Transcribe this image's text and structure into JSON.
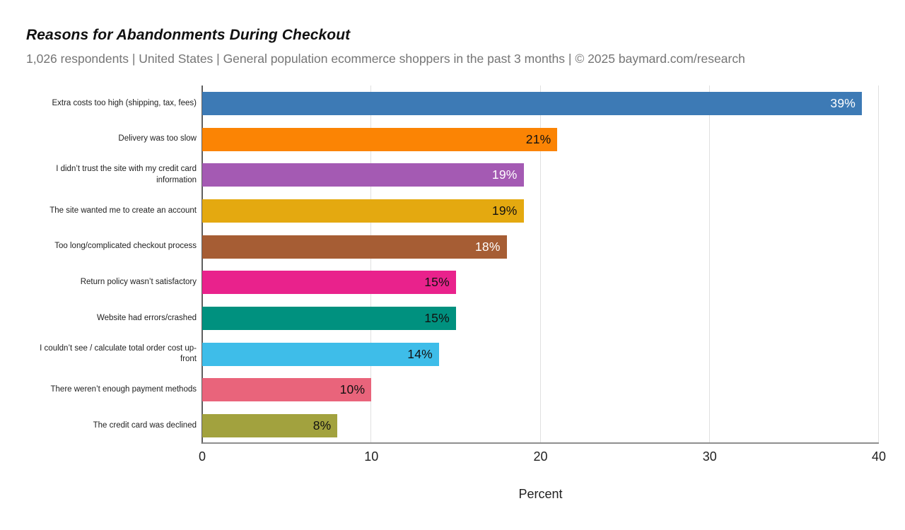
{
  "header": {
    "title": "Reasons for Abandonments During Checkout",
    "subtitle": "1,026 respondents | United States | General population ecommerce shoppers in the past 3 months | © 2025 baymard.com/research"
  },
  "chart_data": {
    "type": "bar",
    "orientation": "horizontal",
    "title": "Reasons for Abandonments During Checkout",
    "subtitle": "1,026 respondents | United States | General population ecommerce shoppers in the past 3 months | © 2025 baymard.com/research",
    "xlabel": "Percent",
    "xlim": [
      0,
      40
    ],
    "xticks": [
      0,
      10,
      20,
      30,
      40
    ],
    "grid": "vertical-gridlines-on",
    "legend": "none",
    "categories": [
      "Extra costs too high (shipping, tax, fees)",
      "Delivery was too slow",
      "I didn’t trust the site with my credit card information",
      "The site wanted me to create an account",
      "Too long/complicated checkout process",
      "Return policy wasn’t satisfactory",
      "Website had errors/crashed",
      "I couldn’t see / calculate total order cost up-front",
      "There weren’t enough payment methods",
      "The credit card was declined"
    ],
    "values": [
      39,
      21,
      19,
      19,
      18,
      15,
      15,
      14,
      10,
      8
    ],
    "value_labels": [
      "39%",
      "21%",
      "19%",
      "19%",
      "18%",
      "15%",
      "15%",
      "14%",
      "10%",
      "8%"
    ],
    "bar_colors": [
      "#3d7ab5",
      "#fb8404",
      "#a45ab3",
      "#e4a910",
      "#a65d34",
      "#e9228c",
      "#00917f",
      "#3ebde9",
      "#e9647b",
      "#a2a23e"
    ],
    "value_label_colors": [
      "#ffffff",
      "#111111",
      "#ffffff",
      "#111111",
      "#ffffff",
      "#111111",
      "#111111",
      "#111111",
      "#111111",
      "#111111"
    ]
  },
  "colors": {
    "background": "#ffffff",
    "title_text": "#111111",
    "subtitle_text": "#757575",
    "gridline": "#e0e0e0",
    "y_axis_line": "#5f5f5f",
    "x_axis_line": "#8f8f8f",
    "tick_text": "#212121",
    "category_text": "#212121"
  }
}
